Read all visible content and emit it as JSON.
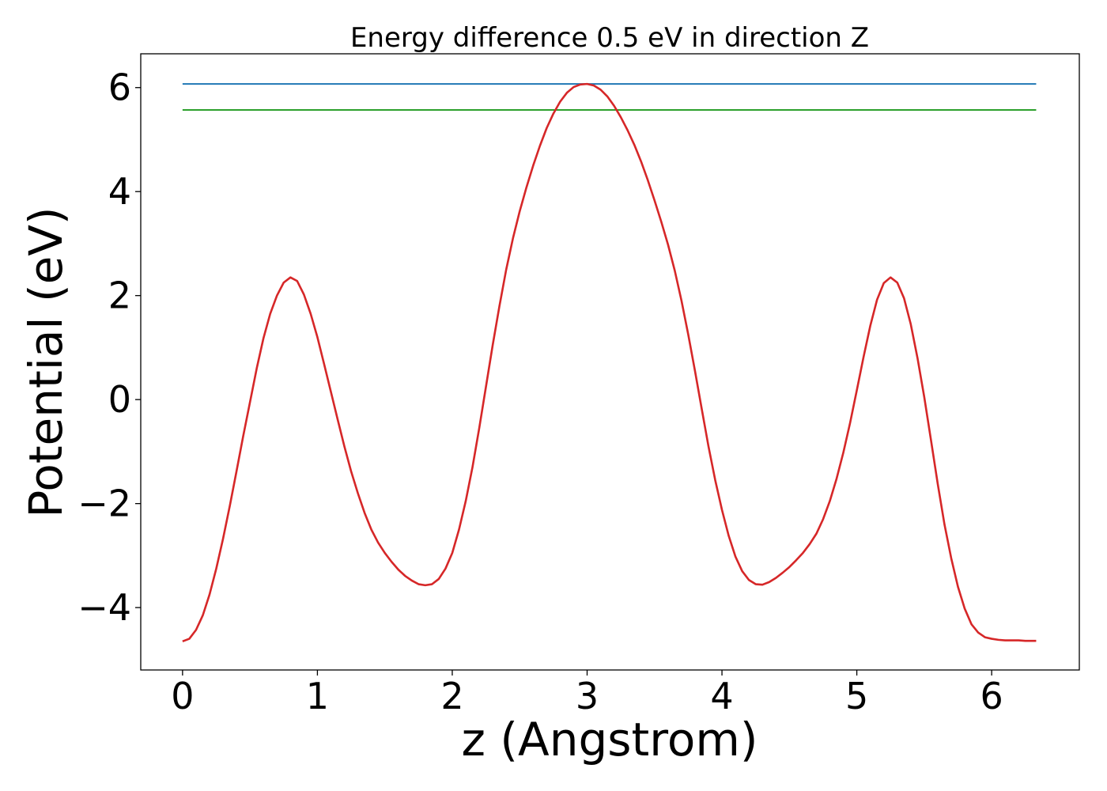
{
  "chart_data": {
    "type": "line",
    "title": "Energy difference 0.5 eV in direction Z",
    "xlabel": "z (Angstrom)",
    "ylabel": "Potential (eV)",
    "xlim": [
      -0.31,
      6.65
    ],
    "ylim": [
      -5.2,
      6.65
    ],
    "grid": false,
    "xticks": [
      0,
      1,
      2,
      3,
      4,
      5,
      6
    ],
    "yticks": [
      -4,
      -2,
      0,
      2,
      4,
      6
    ],
    "xtick_labels": [
      "0",
      "1",
      "2",
      "3",
      "4",
      "5",
      "6"
    ],
    "ytick_labels": [
      "−4",
      "−2",
      "0",
      "2",
      "4",
      "6"
    ],
    "series": [
      {
        "color": "#1f77b4",
        "x": [
          0,
          6.33
        ],
        "y": [
          6.07,
          6.07
        ]
      },
      {
        "color": "#2ca02c",
        "x": [
          0,
          6.33
        ],
        "y": [
          5.57,
          5.57
        ]
      },
      {
        "color": "#d62728",
        "x": [
          0,
          0.05,
          0.1,
          0.15,
          0.2,
          0.25,
          0.3,
          0.35,
          0.4,
          0.45,
          0.5,
          0.55,
          0.6,
          0.65,
          0.7,
          0.75,
          0.8,
          0.85,
          0.9,
          0.95,
          1.0,
          1.05,
          1.1,
          1.15,
          1.2,
          1.25,
          1.3,
          1.35,
          1.4,
          1.45,
          1.5,
          1.55,
          1.6,
          1.65,
          1.7,
          1.75,
          1.8,
          1.85,
          1.9,
          1.95,
          2.0,
          2.05,
          2.1,
          2.15,
          2.2,
          2.25,
          2.3,
          2.35,
          2.4,
          2.45,
          2.5,
          2.55,
          2.6,
          2.65,
          2.7,
          2.75,
          2.8,
          2.85,
          2.9,
          2.95,
          3.0,
          3.05,
          3.1,
          3.15,
          3.2,
          3.25,
          3.3,
          3.35,
          3.4,
          3.45,
          3.5,
          3.55,
          3.6,
          3.65,
          3.7,
          3.75,
          3.8,
          3.85,
          3.9,
          3.95,
          4.0,
          4.05,
          4.1,
          4.15,
          4.2,
          4.25,
          4.3,
          4.35,
          4.4,
          4.45,
          4.5,
          4.55,
          4.6,
          4.65,
          4.7,
          4.75,
          4.8,
          4.85,
          4.9,
          4.95,
          5.0,
          5.05,
          5.1,
          5.15,
          5.2,
          5.25,
          5.3,
          5.35,
          5.4,
          5.45,
          5.5,
          5.55,
          5.6,
          5.65,
          5.7,
          5.75,
          5.8,
          5.85,
          5.9,
          5.95,
          6.0,
          6.05,
          6.1,
          6.15,
          6.2,
          6.25,
          6.3,
          6.33
        ],
        "y": [
          -4.65,
          -4.6,
          -4.43,
          -4.15,
          -3.75,
          -3.25,
          -2.68,
          -2.05,
          -1.38,
          -0.7,
          -0.05,
          0.6,
          1.18,
          1.65,
          2.0,
          2.25,
          2.35,
          2.28,
          2.02,
          1.65,
          1.2,
          0.68,
          0.15,
          -0.38,
          -0.9,
          -1.38,
          -1.8,
          -2.18,
          -2.5,
          -2.75,
          -2.95,
          -3.12,
          -3.27,
          -3.39,
          -3.48,
          -3.55,
          -3.57,
          -3.55,
          -3.45,
          -3.25,
          -2.95,
          -2.5,
          -1.95,
          -1.3,
          -0.55,
          0.25,
          1.05,
          1.8,
          2.5,
          3.1,
          3.62,
          4.08,
          4.5,
          4.88,
          5.22,
          5.5,
          5.73,
          5.9,
          6.01,
          6.06,
          6.07,
          6.04,
          5.96,
          5.83,
          5.65,
          5.43,
          5.18,
          4.9,
          4.58,
          4.22,
          3.83,
          3.42,
          2.98,
          2.48,
          1.9,
          1.25,
          0.55,
          -0.18,
          -0.9,
          -1.55,
          -2.12,
          -2.62,
          -3.02,
          -3.3,
          -3.47,
          -3.55,
          -3.56,
          -3.51,
          -3.43,
          -3.33,
          -3.22,
          -3.09,
          -2.95,
          -2.78,
          -2.58,
          -2.3,
          -1.95,
          -1.52,
          -1.02,
          -0.45,
          0.18,
          0.82,
          1.42,
          1.92,
          2.24,
          2.35,
          2.25,
          1.95,
          1.45,
          0.8,
          0.05,
          -0.78,
          -1.62,
          -2.4,
          -3.05,
          -3.6,
          -4.02,
          -4.32,
          -4.48,
          -4.57,
          -4.6,
          -4.62,
          -4.63,
          -4.63,
          -4.63,
          -4.64,
          -4.64,
          -4.64
        ]
      }
    ]
  }
}
